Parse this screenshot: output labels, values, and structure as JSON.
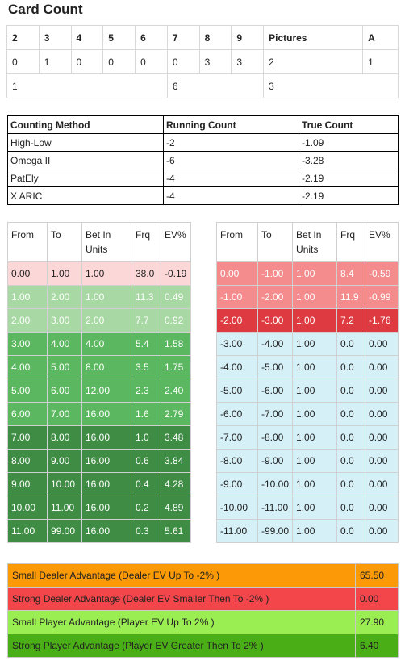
{
  "title": "Card Count",
  "card_count": {
    "headers": [
      "2",
      "3",
      "4",
      "5",
      "6",
      "7",
      "8",
      "9",
      "Pictures",
      "A"
    ],
    "counts": [
      "0",
      "1",
      "0",
      "0",
      "0",
      "0",
      "3",
      "3",
      "2",
      "1"
    ],
    "groups": [
      "1",
      "6",
      "3"
    ]
  },
  "methods": {
    "headers": [
      "Counting Method",
      "Running Count",
      "True Count"
    ],
    "rows": [
      [
        "High-Low",
        "-2",
        "-1.09"
      ],
      [
        "Omega II",
        "-6",
        "-3.28"
      ],
      [
        "PatEly",
        "-4",
        "-2.19"
      ],
      [
        "X ARIC",
        "-4",
        "-2.19"
      ]
    ]
  },
  "bet_left": {
    "headers": [
      "From",
      "To",
      "Bet In Units",
      "Frq",
      "EV%"
    ],
    "rows": [
      {
        "cells": [
          "0.00",
          "1.00",
          "1.00",
          "38.0",
          "-0.19"
        ],
        "bg": "#fcd7d7",
        "fg": "#222"
      },
      {
        "cells": [
          "1.00",
          "2.00",
          "1.00",
          "11.3",
          "0.49"
        ],
        "bg": "#a8d8a3",
        "fg": "#ffffff"
      },
      {
        "cells": [
          "2.00",
          "3.00",
          "2.00",
          "7.7",
          "0.92"
        ],
        "bg": "#a8d8a3",
        "fg": "#ffffff"
      },
      {
        "cells": [
          "3.00",
          "4.00",
          "4.00",
          "5.4",
          "1.58"
        ],
        "bg": "#5cb860",
        "fg": "#ffffff"
      },
      {
        "cells": [
          "4.00",
          "5.00",
          "8.00",
          "3.5",
          "1.75"
        ],
        "bg": "#5cb860",
        "fg": "#ffffff"
      },
      {
        "cells": [
          "5.00",
          "6.00",
          "12.00",
          "2.3",
          "2.40"
        ],
        "bg": "#5cb860",
        "fg": "#ffffff"
      },
      {
        "cells": [
          "6.00",
          "7.00",
          "16.00",
          "1.6",
          "2.79"
        ],
        "bg": "#5cb860",
        "fg": "#ffffff"
      },
      {
        "cells": [
          "7.00",
          "8.00",
          "16.00",
          "1.0",
          "3.48"
        ],
        "bg": "#3f8c45",
        "fg": "#ffffff"
      },
      {
        "cells": [
          "8.00",
          "9.00",
          "16.00",
          "0.6",
          "3.84"
        ],
        "bg": "#3f8c45",
        "fg": "#ffffff"
      },
      {
        "cells": [
          "9.00",
          "10.00",
          "16.00",
          "0.4",
          "4.28"
        ],
        "bg": "#3f8c45",
        "fg": "#ffffff"
      },
      {
        "cells": [
          "10.00",
          "11.00",
          "16.00",
          "0.2",
          "4.89"
        ],
        "bg": "#3f8c45",
        "fg": "#ffffff"
      },
      {
        "cells": [
          "11.00",
          "99.00",
          "16.00",
          "0.3",
          "5.61"
        ],
        "bg": "#3f8c45",
        "fg": "#ffffff"
      }
    ]
  },
  "bet_right": {
    "headers": [
      "From",
      "To",
      "Bet In Units",
      "Frq",
      "EV%"
    ],
    "rows": [
      {
        "cells": [
          "0.00",
          "-1.00",
          "1.00",
          "8.4",
          "-0.59"
        ],
        "bg": "#f48b8d",
        "fg": "#ffffff"
      },
      {
        "cells": [
          "-1.00",
          "-2.00",
          "1.00",
          "11.9",
          "-0.99"
        ],
        "bg": "#f48b8d",
        "fg": "#ffffff"
      },
      {
        "cells": [
          "-2.00",
          "-3.00",
          "1.00",
          "7.2",
          "-1.76"
        ],
        "bg": "#dd3b41",
        "fg": "#ffffff"
      },
      {
        "cells": [
          "-3.00",
          "-4.00",
          "1.00",
          "0.0",
          "0.00"
        ],
        "bg": "#d6f0f8",
        "fg": "#222"
      },
      {
        "cells": [
          "-4.00",
          "-5.00",
          "1.00",
          "0.0",
          "0.00"
        ],
        "bg": "#d6f0f8",
        "fg": "#222"
      },
      {
        "cells": [
          "-5.00",
          "-6.00",
          "1.00",
          "0.0",
          "0.00"
        ],
        "bg": "#d6f0f8",
        "fg": "#222"
      },
      {
        "cells": [
          "-6.00",
          "-7.00",
          "1.00",
          "0.0",
          "0.00"
        ],
        "bg": "#d6f0f8",
        "fg": "#222"
      },
      {
        "cells": [
          "-7.00",
          "-8.00",
          "1.00",
          "0.0",
          "0.00"
        ],
        "bg": "#d6f0f8",
        "fg": "#222"
      },
      {
        "cells": [
          "-8.00",
          "-9.00",
          "1.00",
          "0.0",
          "0.00"
        ],
        "bg": "#d6f0f8",
        "fg": "#222"
      },
      {
        "cells": [
          "-9.00",
          "-10.00",
          "1.00",
          "0.0",
          "0.00"
        ],
        "bg": "#d6f0f8",
        "fg": "#222"
      },
      {
        "cells": [
          "-10.00",
          "-11.00",
          "1.00",
          "0.0",
          "0.00"
        ],
        "bg": "#d6f0f8",
        "fg": "#222"
      },
      {
        "cells": [
          "-11.00",
          "-99.00",
          "1.00",
          "0.0",
          "0.00"
        ],
        "bg": "#d6f0f8",
        "fg": "#222"
      }
    ]
  },
  "advantage": [
    {
      "label": "Small Dealer Advantage (Dealer EV Up To -2% )",
      "value": "65.50",
      "bg": "#fb9a06"
    },
    {
      "label": "Strong Dealer Advantage (Dealer EV Smaller Then To -2% )",
      "value": "0.00",
      "bg": "#f2464a"
    },
    {
      "label": "Small Player Advantage (Player EV Up To 2% )",
      "value": "27.90",
      "bg": "#9bee52"
    },
    {
      "label": "Strong Player Advantage (Player EV Greater Then To 2% )",
      "value": "6.40",
      "bg": "#4aae17"
    }
  ]
}
